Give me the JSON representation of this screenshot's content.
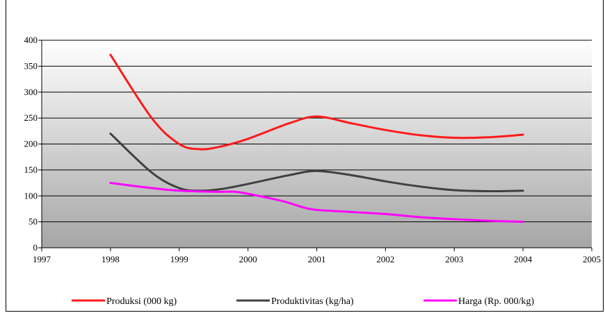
{
  "chart_data": {
    "type": "line",
    "title": "",
    "xlabel": "",
    "ylabel": "",
    "x": [
      1998,
      1999,
      2000,
      2001,
      2002,
      2003,
      2004
    ],
    "xlim": [
      1997,
      2005
    ],
    "ylim": [
      0,
      400
    ],
    "x_ticks": [
      "1997",
      "1998",
      "1999",
      "2000",
      "2001",
      "2002",
      "2003",
      "2004",
      "2005"
    ],
    "y_ticks": [
      "0",
      "50",
      "100",
      "150",
      "200",
      "250",
      "300",
      "350",
      "400"
    ],
    "grid": "horizontal",
    "legend_position": "bottom",
    "series": [
      {
        "name": "Produksi (000 kg)",
        "color": "#ff1a1a",
        "points": [
          [
            1998,
            372
          ],
          [
            1998.6,
            250
          ],
          [
            1999,
            200
          ],
          [
            1999.3,
            190
          ],
          [
            1999.6,
            195
          ],
          [
            2000,
            210
          ],
          [
            2000.6,
            240
          ],
          [
            2001,
            253
          ],
          [
            2001.5,
            240
          ],
          [
            2002,
            227
          ],
          [
            2002.5,
            217
          ],
          [
            2003,
            212
          ],
          [
            2003.5,
            213
          ],
          [
            2004,
            218
          ]
        ]
      },
      {
        "name": "Produktivitas (kg/ha)",
        "color": "#404040",
        "points": [
          [
            1998,
            220
          ],
          [
            1998.6,
            145
          ],
          [
            1999,
            115
          ],
          [
            1999.3,
            110
          ],
          [
            1999.6,
            113
          ],
          [
            2000,
            123
          ],
          [
            2000.6,
            140
          ],
          [
            2001,
            148
          ],
          [
            2001.5,
            140
          ],
          [
            2002,
            128
          ],
          [
            2002.5,
            118
          ],
          [
            2003,
            111
          ],
          [
            2003.5,
            109
          ],
          [
            2004,
            110
          ]
        ]
      },
      {
        "name": "Harga (Rp. 000/kg)",
        "color": "#ff00ff",
        "points": [
          [
            1998,
            125
          ],
          [
            1998.6,
            115
          ],
          [
            1999,
            110
          ],
          [
            1999.5,
            108
          ],
          [
            1999.8,
            108
          ],
          [
            2000,
            104
          ],
          [
            2000.5,
            90
          ],
          [
            2000.8,
            78
          ],
          [
            2001,
            73
          ],
          [
            2001.5,
            69
          ],
          [
            2002,
            65
          ],
          [
            2002.5,
            59
          ],
          [
            2003,
            55
          ],
          [
            2003.5,
            52
          ],
          [
            2004,
            50
          ]
        ]
      }
    ]
  }
}
